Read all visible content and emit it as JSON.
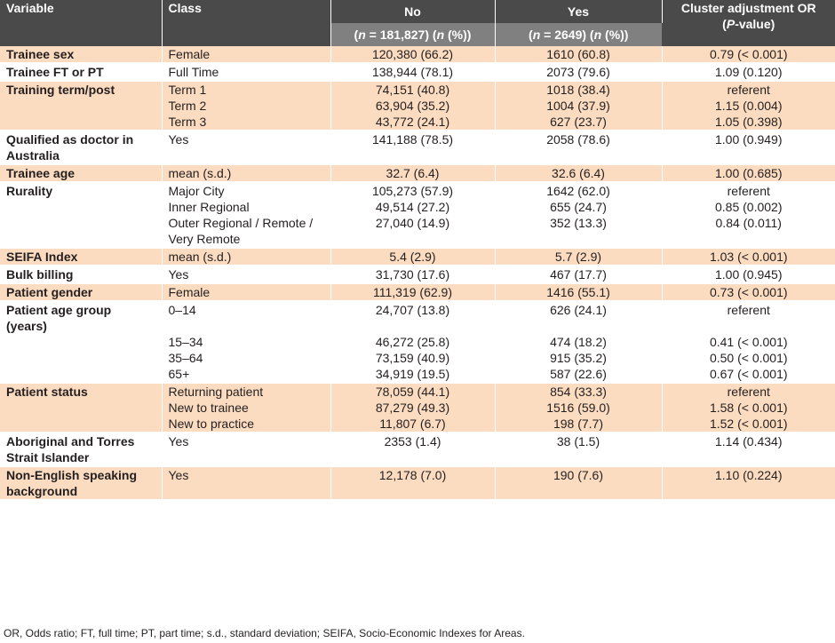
{
  "headers": {
    "variable": "Variable",
    "class": "Class",
    "no": "No",
    "yes": "Yes",
    "or_line1": "Cluster adjustment OR",
    "or_p": "P",
    "or_line2_rest": "-value)",
    "or_line2_open": "(",
    "no_n_open": "(",
    "no_n_italic": "n",
    "no_n_rest": " = 181,827) (",
    "no_n_italic2": "n",
    "no_n_close": " (%))",
    "yes_n_open": "(",
    "yes_n_italic": "n",
    "yes_n_rest": " = 2649) (",
    "yes_n_italic2": "n",
    "yes_n_close": " (%))"
  },
  "rows": [
    {
      "var": "Trainee sex",
      "class": "Female",
      "no": "120,380 (66.2)",
      "yes": "1610 (60.8)",
      "or": "0.79 (< 0.001)",
      "group": 0
    },
    {
      "var": "Trainee FT or PT",
      "class": "Full Time",
      "no": "138,944 (78.1)",
      "yes": "2073 (79.6)",
      "or": "1.09 (0.120)",
      "group": 1
    },
    {
      "var": "Training term/post",
      "class": "Term 1",
      "no": "74,151 (40.8)",
      "yes": "1018 (38.4)",
      "or": "referent",
      "group": 0
    },
    {
      "var": "",
      "class": "Term 2",
      "no": "63,904 (35.2)",
      "yes": "1004 (37.9)",
      "or": "1.15 (0.004)",
      "group": 0
    },
    {
      "var": "",
      "class": "Term 3",
      "no": "43,772 (24.1)",
      "yes": "627 (23.7)",
      "or": "1.05 (0.398)",
      "group": 0
    },
    {
      "var": "Qualified as doctor in Australia",
      "class": "Yes",
      "no": "141,188 (78.5)",
      "yes": "2058 (78.6)",
      "or": "1.00 (0.949)",
      "group": 1
    },
    {
      "var": "Trainee age",
      "class": "mean (s.d.)",
      "no": "32.7 (6.4)",
      "yes": "32.6 (6.4)",
      "or": "1.00 (0.685)",
      "group": 0
    },
    {
      "var": "Rurality",
      "class": "Major City",
      "no": "105,273 (57.9)",
      "yes": "1642 (62.0)",
      "or": "referent",
      "group": 1
    },
    {
      "var": "",
      "class": "Inner Regional",
      "no": "49,514 (27.2)",
      "yes": "655 (24.7)",
      "or": "0.85 (0.002)",
      "group": 1
    },
    {
      "var": "",
      "class": "Outer Regional / Remote / Very Remote",
      "no": "27,040 (14.9)",
      "yes": "352 (13.3)",
      "or": "0.84 (0.011)",
      "group": 1
    },
    {
      "var": "SEIFA Index",
      "class": "mean (s.d.)",
      "no": "5.4 (2.9)",
      "yes": "5.7 (2.9)",
      "or": "1.03 (< 0.001)",
      "group": 0
    },
    {
      "var": "Bulk billing",
      "class": "Yes",
      "no": "31,730 (17.6)",
      "yes": "467 (17.7)",
      "or": "1.00 (0.945)",
      "group": 1
    },
    {
      "var": "Patient gender",
      "class": "Female",
      "no": "111,319 (62.9)",
      "yes": "1416 (55.1)",
      "or": "0.73 (< 0.001)",
      "group": 0
    },
    {
      "var": "Patient age group (years)",
      "class": "0–14",
      "no": "24,707 (13.8)",
      "yes": "626 (24.1)",
      "or": "referent",
      "group": 1
    },
    {
      "var": "",
      "class": "15–34",
      "no": "46,272 (25.8)",
      "yes": "474 (18.2)",
      "or": "0.41 (< 0.001)",
      "group": 1
    },
    {
      "var": "",
      "class": "35–64",
      "no": "73,159 (40.9)",
      "yes": "915 (35.2)",
      "or": "0.50 (< 0.001)",
      "group": 1
    },
    {
      "var": "",
      "class": "65+",
      "no": "34,919 (19.5)",
      "yes": "587 (22.6)",
      "or": "0.67 (< 0.001)",
      "group": 1
    },
    {
      "var": "Patient status",
      "class": "Returning patient",
      "no": "78,059 (44.1)",
      "yes": "854 (33.3)",
      "or": "referent",
      "group": 0
    },
    {
      "var": "",
      "class": "New to trainee",
      "no": "87,279 (49.3)",
      "yes": "1516 (59.0)",
      "or": "1.58 (< 0.001)",
      "group": 0
    },
    {
      "var": "",
      "class": "New to practice",
      "no": "11,807 (6.7)",
      "yes": "198 (7.7)",
      "or": "1.52 (< 0.001)",
      "group": 0
    },
    {
      "var": "Aboriginal and Torres Strait Islander",
      "class": "Yes",
      "no": "2353 (1.4)",
      "yes": "38 (1.5)",
      "or": "1.14 (0.434)",
      "group": 1
    },
    {
      "var": "Non-English speaking background",
      "class": "Yes",
      "no": "12,178 (7.0)",
      "yes": "190 (7.6)",
      "or": "1.10 (0.224)",
      "group": 0
    }
  ],
  "footnote": "OR, Odds ratio; FT, full time; PT, part time; s.d., standard deviation; SEIFA, Socio-Economic Indexes for Areas."
}
